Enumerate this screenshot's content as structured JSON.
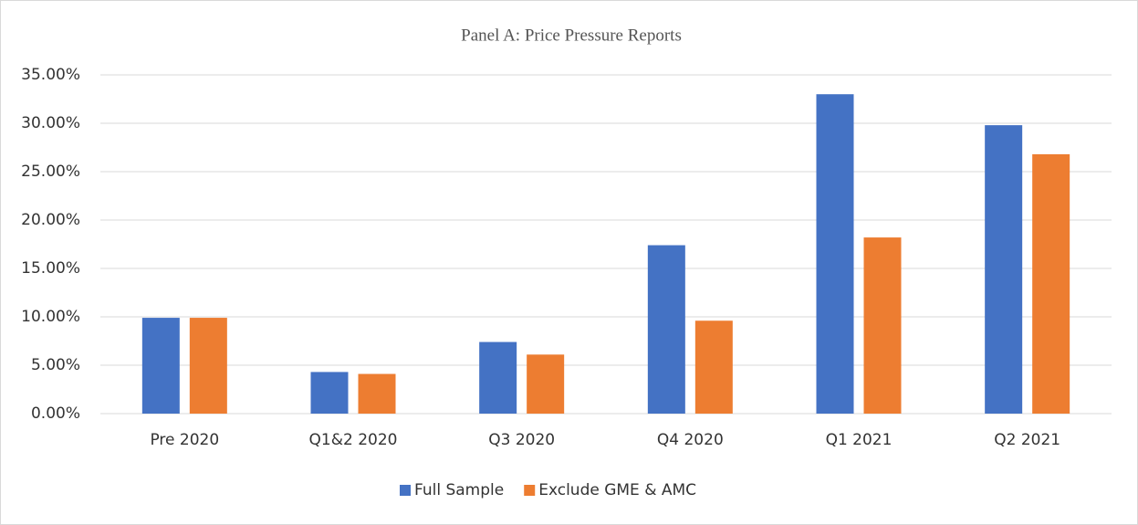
{
  "chart_data": {
    "type": "bar",
    "title": "Panel A: Price Pressure Reports",
    "categories": [
      "Pre 2020",
      "Q1&2 2020",
      "Q3 2020",
      "Q4 2020",
      "Q1 2021",
      "Q2 2021"
    ],
    "series": [
      {
        "name": "Full Sample",
        "color": "#4472c4",
        "values": [
          9.9,
          4.3,
          7.4,
          17.4,
          33.0,
          29.8
        ]
      },
      {
        "name": "Exclude GME & AMC",
        "color": "#ed7d31",
        "values": [
          9.9,
          4.1,
          6.1,
          9.6,
          18.2,
          26.8
        ]
      }
    ],
    "ylim": [
      0,
      35
    ],
    "yticks": [
      {
        "value": 0,
        "label": "0.00%"
      },
      {
        "value": 5,
        "label": "5.00%"
      },
      {
        "value": 10,
        "label": "10.00%"
      },
      {
        "value": 15,
        "label": "15.00%"
      },
      {
        "value": 20,
        "label": "20.00%"
      },
      {
        "value": 25,
        "label": "25.00%"
      },
      {
        "value": 30,
        "label": "30.00%"
      },
      {
        "value": 35,
        "label": "35.00%"
      }
    ],
    "grid": true,
    "legend": "bottom"
  }
}
